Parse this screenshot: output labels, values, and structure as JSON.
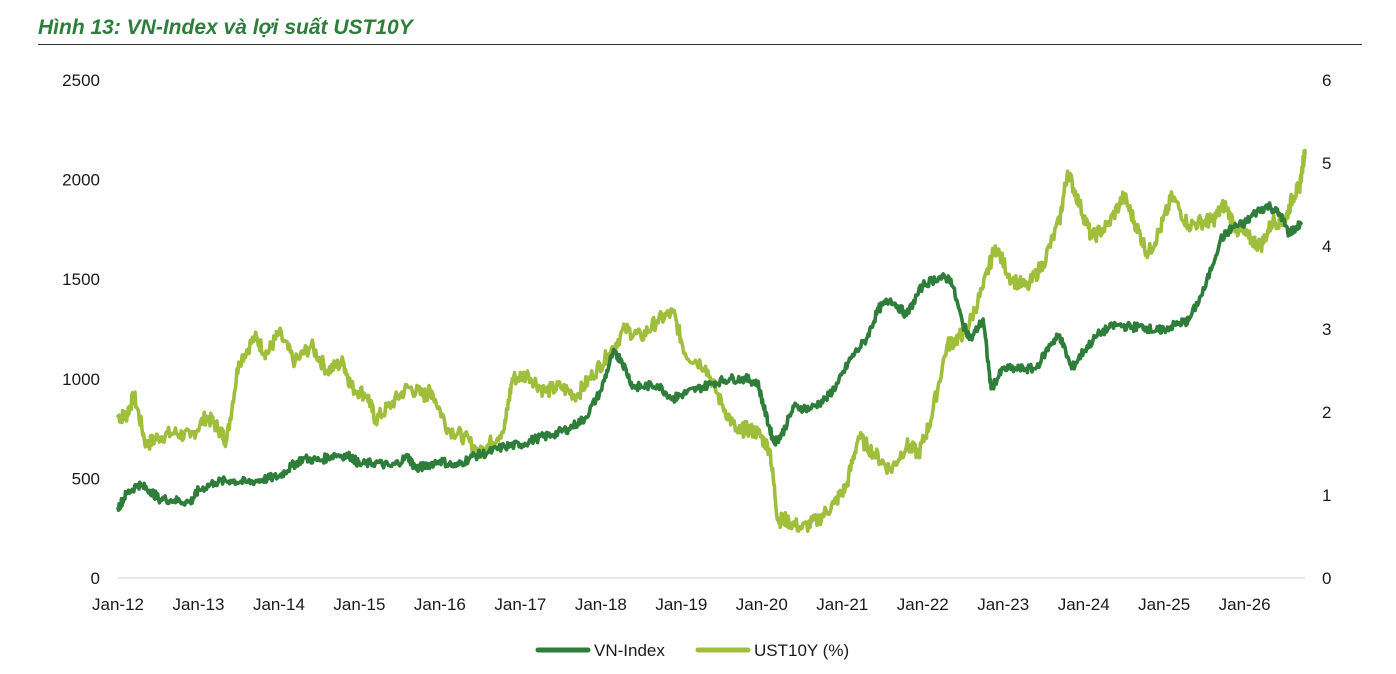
{
  "title": "Hình 13: VN-Index và lợi suất UST10Y",
  "chart_data": {
    "type": "line",
    "title": "Hình 13: VN-Index và lợi suất UST10Y",
    "x_tick_labels": [
      "Jan-12",
      "Jan-13",
      "Jan-14",
      "Jan-15",
      "Jan-16",
      "Jan-17",
      "Jan-18",
      "Jan-19",
      "Jan-20",
      "Jan-21",
      "Jan-22",
      "Jan-23",
      "Jan-24",
      "Jan-25",
      "Jan-26"
    ],
    "xlim": [
      2012.0,
      2026.75
    ],
    "y_left": {
      "ticks": [
        "0",
        "500",
        "1000",
        "1500",
        "2000",
        "2500"
      ],
      "lim": [
        0,
        2500
      ]
    },
    "y_right": {
      "ticks": [
        "0",
        "1",
        "2",
        "3",
        "4",
        "5",
        "6"
      ],
      "lim": [
        0,
        6
      ]
    },
    "grid": false,
    "legend": "bottom",
    "series": [
      {
        "name": "VN-Index",
        "axis": "left",
        "color": "#2e7d3a",
        "x": [
          2012.0,
          2012.1,
          2012.25,
          2012.4,
          2012.5,
          2012.7,
          2012.9,
          2013.0,
          2013.2,
          2013.4,
          2013.6,
          2013.8,
          2014.0,
          2014.15,
          2014.3,
          2014.5,
          2014.7,
          2014.9,
          2015.0,
          2015.2,
          2015.4,
          2015.6,
          2015.7,
          2015.8,
          2016.0,
          2016.2,
          2016.4,
          2016.6,
          2016.8,
          2017.0,
          2017.2,
          2017.4,
          2017.6,
          2017.8,
          2018.0,
          2018.15,
          2018.25,
          2018.4,
          2018.5,
          2018.7,
          2018.9,
          2019.0,
          2019.2,
          2019.4,
          2019.6,
          2019.8,
          2019.95,
          2020.05,
          2020.15,
          2020.25,
          2020.4,
          2020.6,
          2020.8,
          2020.95,
          2021.1,
          2021.3,
          2021.45,
          2021.6,
          2021.8,
          2022.0,
          2022.2,
          2022.35,
          2022.5,
          2022.6,
          2022.75,
          2022.85,
          2023.0,
          2023.2,
          2023.4,
          2023.6,
          2023.7,
          2023.85,
          2024.0,
          2024.2,
          2024.4,
          2024.6,
          2024.75,
          2024.9,
          2025.0,
          2025.2,
          2025.3,
          2025.5,
          2025.7,
          2025.85,
          2026.0,
          2026.15,
          2026.3,
          2026.45,
          2026.55,
          2026.7
        ],
        "values": [
          350,
          420,
          470,
          440,
          400,
          390,
          380,
          440,
          480,
          490,
          480,
          495,
          510,
          560,
          600,
          590,
          620,
          610,
          570,
          580,
          560,
          610,
          550,
          560,
          590,
          560,
          610,
          630,
          660,
          670,
          700,
          720,
          750,
          800,
          940,
          1130,
          1100,
          960,
          960,
          970,
          900,
          920,
          950,
          980,
          1000,
          1000,
          980,
          820,
          680,
          720,
          860,
          850,
          900,
          980,
          1100,
          1200,
          1350,
          1400,
          1320,
          1470,
          1510,
          1500,
          1270,
          1200,
          1300,
          950,
          1050,
          1050,
          1050,
          1180,
          1220,
          1050,
          1140,
          1230,
          1270,
          1260,
          1260,
          1240,
          1250,
          1280,
          1290,
          1450,
          1700,
          1760,
          1780,
          1840,
          1870,
          1820,
          1730,
          1780
        ]
      },
      {
        "name": "UST10Y (%)",
        "axis": "right",
        "color": "#9fbe3c",
        "x": [
          2012.0,
          2012.1,
          2012.2,
          2012.35,
          2012.5,
          2012.7,
          2012.9,
          2013.1,
          2013.25,
          2013.35,
          2013.5,
          2013.7,
          2013.85,
          2014.0,
          2014.2,
          2014.4,
          2014.6,
          2014.8,
          2014.9,
          2015.1,
          2015.2,
          2015.4,
          2015.6,
          2015.8,
          2015.9,
          2016.1,
          2016.3,
          2016.5,
          2016.6,
          2016.8,
          2016.9,
          2017.1,
          2017.3,
          2017.5,
          2017.7,
          2017.9,
          2018.1,
          2018.3,
          2018.5,
          2018.7,
          2018.9,
          2019.05,
          2019.3,
          2019.5,
          2019.7,
          2019.8,
          2019.95,
          2020.1,
          2020.2,
          2020.3,
          2020.5,
          2020.7,
          2020.9,
          2021.05,
          2021.2,
          2021.4,
          2021.6,
          2021.8,
          2021.95,
          2022.1,
          2022.3,
          2022.45,
          2022.55,
          2022.75,
          2022.9,
          2023.1,
          2023.3,
          2023.5,
          2023.7,
          2023.8,
          2023.95,
          2024.1,
          2024.3,
          2024.5,
          2024.65,
          2024.8,
          2024.95,
          2025.1,
          2025.3,
          2025.5,
          2025.6,
          2025.75,
          2025.9,
          2026.05,
          2026.2,
          2026.35,
          2026.5,
          2026.6,
          2026.68,
          2026.75
        ],
        "values": [
          1.95,
          1.95,
          2.2,
          1.6,
          1.7,
          1.75,
          1.7,
          1.95,
          1.8,
          1.65,
          2.6,
          2.9,
          2.7,
          2.95,
          2.6,
          2.8,
          2.5,
          2.6,
          2.3,
          2.2,
          1.9,
          2.1,
          2.3,
          2.2,
          2.25,
          1.8,
          1.7,
          1.5,
          1.6,
          1.8,
          2.4,
          2.45,
          2.25,
          2.3,
          2.2,
          2.45,
          2.7,
          3.0,
          2.9,
          3.1,
          3.2,
          2.7,
          2.55,
          2.1,
          1.75,
          1.8,
          1.75,
          1.55,
          0.7,
          0.7,
          0.6,
          0.7,
          0.9,
          1.1,
          1.7,
          1.5,
          1.3,
          1.6,
          1.5,
          1.9,
          2.8,
          2.9,
          3.0,
          3.5,
          4.0,
          3.6,
          3.5,
          3.8,
          4.3,
          4.9,
          4.5,
          4.1,
          4.25,
          4.6,
          4.25,
          3.9,
          4.2,
          4.6,
          4.25,
          4.3,
          4.3,
          4.5,
          4.2,
          4.1,
          4.0,
          4.3,
          4.3,
          4.6,
          4.7,
          5.15
        ]
      }
    ]
  }
}
